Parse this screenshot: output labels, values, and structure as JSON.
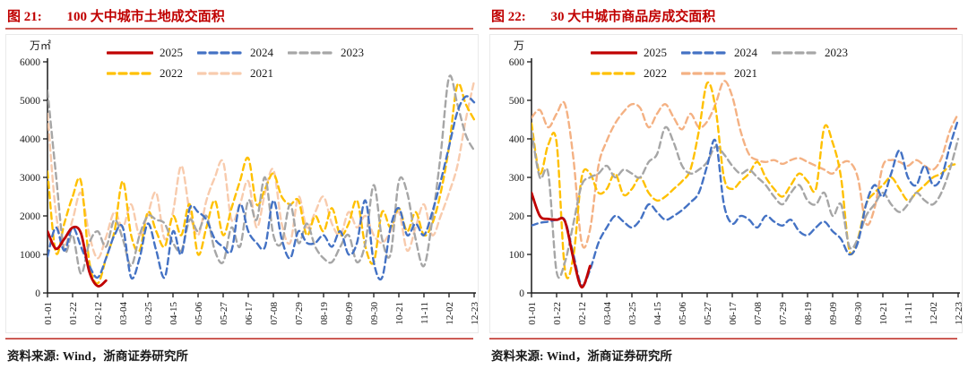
{
  "colors": {
    "title": "#c00000",
    "rule": "#cd5c55",
    "axis": "#1a1a1a",
    "frame": "#e9e9e9"
  },
  "chart_data": [
    {
      "type": "line",
      "figure_label": "图 21:",
      "title": "100 大中城市土地成交面积",
      "unit": "万㎡",
      "source": "资料来源: Wind，浙商证券研究所",
      "ylim": [
        0,
        6000
      ],
      "ystep": 1000,
      "y_tick_labels": [
        "0",
        "1000",
        "2000",
        "3000",
        "4000",
        "5000",
        "6000"
      ],
      "weeks": 52,
      "x_tick_every": 3,
      "x_tick_labels": [
        "01-01",
        "01-22",
        "02-12",
        "03-04",
        "03-25",
        "04-15",
        "05-06",
        "05-27",
        "06-17",
        "07-08",
        "07-29",
        "08-19",
        "09-09",
        "09-30",
        "10-21",
        "11-11",
        "12-02",
        "12-23"
      ],
      "grid": false,
      "legend_position": "top-inside",
      "legend_rows": [
        [
          "2025",
          "2024",
          "2023"
        ],
        [
          "2022",
          "2021"
        ]
      ],
      "series": [
        {
          "name": "2021",
          "color": "#F8CBAD",
          "dash": "dashed",
          "values": [
            4650,
            2100,
            1250,
            1900,
            2600,
            1500,
            900,
            1450,
            2100,
            1700,
            2300,
            1500,
            2050,
            2600,
            1400,
            2100,
            3300,
            2100,
            1500,
            2400,
            3000,
            3400,
            1900,
            2300,
            2900,
            1700,
            2600,
            3200,
            1800,
            1300,
            2500,
            1700,
            2100,
            2500,
            1800,
            1500,
            2100,
            1700,
            2000,
            1500,
            1300,
            1600,
            2100,
            1100,
            1700,
            2300,
            1500,
            2000,
            2600,
            3300,
            4500,
            5500
          ]
        },
        {
          "name": "2022",
          "color": "#FFC000",
          "dash": "dashed",
          "values": [
            3150,
            1050,
            1800,
            2500,
            2900,
            800,
            250,
            900,
            1600,
            2900,
            1500,
            1100,
            2100,
            1600,
            1200,
            2000,
            1500,
            2300,
            1000,
            1700,
            2400,
            1500,
            2200,
            2900,
            3500,
            2300,
            2700,
            3100,
            2500,
            2300,
            2400,
            1500,
            2000,
            1600,
            2200,
            1500,
            1800,
            2400,
            1200,
            800,
            2100,
            1700,
            2200,
            1600,
            2100,
            1500,
            1800,
            2600,
            3800,
            5400,
            4900,
            4500
          ]
        },
        {
          "name": "2023",
          "color": "#A6A6A6",
          "dash": "dashed",
          "values": [
            5250,
            3100,
            1100,
            1500,
            500,
            1300,
            1600,
            1200,
            1900,
            1400,
            700,
            1500,
            2000,
            1900,
            1800,
            1300,
            1100,
            1900,
            1600,
            2000,
            1100,
            800,
            1700,
            1200,
            2400,
            1900,
            3000,
            1500,
            1300,
            2300,
            1300,
            1800,
            1200,
            900,
            800,
            1200,
            1500,
            800,
            1300,
            2800,
            1400,
            1000,
            2900,
            2600,
            1400,
            700,
            1900,
            3600,
            5600,
            4900,
            4100,
            3700
          ]
        },
        {
          "name": "2024",
          "color": "#4472C4",
          "dash": "dashed",
          "values": [
            950,
            1700,
            1100,
            1700,
            1200,
            700,
            400,
            900,
            1500,
            1700,
            400,
            900,
            1800,
            1100,
            400,
            1600,
            1000,
            2200,
            2100,
            1900,
            1400,
            1200,
            1100,
            2300,
            1600,
            1300,
            1200,
            2400,
            1400,
            900,
            1600,
            1300,
            1300,
            1500,
            1200,
            1600,
            1000,
            1300,
            2400,
            800,
            400,
            1700,
            2200,
            1500,
            1800,
            1500,
            2100,
            2900,
            3800,
            4700,
            5100,
            4950
          ]
        },
        {
          "name": "2025",
          "color": "#C00000",
          "dash": "solid",
          "values": [
            1600,
            1150,
            1400,
            1700,
            1550,
            550,
            180,
            320
          ]
        }
      ]
    },
    {
      "type": "line",
      "figure_label": "图 22:",
      "title": "30 大中城市商品房成交面积",
      "unit": "万",
      "source": "资料来源: Wind，浙商证券研究所",
      "ylim": [
        0,
        600
      ],
      "ystep": 100,
      "y_tick_labels": [
        "0",
        "100",
        "200",
        "300",
        "400",
        "500",
        "600"
      ],
      "weeks": 52,
      "x_tick_every": 3,
      "x_tick_labels": [
        "01-01",
        "01-22",
        "02-12",
        "03-04",
        "03-25",
        "04-15",
        "05-06",
        "05-27",
        "06-17",
        "07-08",
        "07-29",
        "08-19",
        "09-09",
        "09-30",
        "10-21",
        "11-11",
        "12-02",
        "12-23"
      ],
      "grid": false,
      "legend_position": "top-inside",
      "legend_rows": [
        [
          "2025",
          "2024",
          "2023"
        ],
        [
          "2022",
          "2021"
        ]
      ],
      "series": [
        {
          "name": "2021",
          "color": "#F4B183",
          "dash": "dashed",
          "values": [
            455,
            475,
            430,
            465,
            490,
            350,
            130,
            165,
            330,
            395,
            440,
            470,
            490,
            480,
            430,
            465,
            490,
            455,
            425,
            465,
            430,
            445,
            490,
            550,
            510,
            420,
            360,
            345,
            340,
            345,
            335,
            345,
            350,
            340,
            330,
            320,
            310,
            335,
            340,
            300,
            180,
            220,
            330,
            345,
            340,
            330,
            345,
            330,
            320,
            350,
            420,
            465
          ]
        },
        {
          "name": "2022",
          "color": "#FFC000",
          "dash": "dashed",
          "values": [
            440,
            310,
            385,
            390,
            60,
            95,
            300,
            310,
            260,
            270,
            310,
            255,
            270,
            300,
            260,
            240,
            250,
            270,
            290,
            320,
            420,
            545,
            480,
            300,
            270,
            290,
            310,
            340,
            300,
            270,
            250,
            280,
            310,
            290,
            270,
            430,
            390,
            300,
            110,
            140,
            230,
            260,
            280,
            300,
            270,
            240,
            260,
            280,
            300,
            310,
            330,
            335
          ]
        },
        {
          "name": "2023",
          "color": "#A6A6A6",
          "dash": "dashed",
          "values": [
            420,
            300,
            310,
            55,
            80,
            180,
            280,
            300,
            310,
            330,
            300,
            320,
            310,
            300,
            340,
            360,
            430,
            390,
            330,
            310,
            320,
            340,
            380,
            360,
            330,
            310,
            320,
            300,
            280,
            250,
            230,
            260,
            280,
            240,
            230,
            260,
            200,
            230,
            120,
            140,
            200,
            230,
            260,
            230,
            210,
            230,
            260,
            240,
            230,
            260,
            320,
            400
          ]
        },
        {
          "name": "2024",
          "color": "#4472C4",
          "dash": "dashed",
          "values": [
            175,
            182,
            185,
            190,
            188,
            100,
            20,
            60,
            130,
            170,
            200,
            185,
            170,
            190,
            230,
            210,
            190,
            200,
            215,
            235,
            260,
            330,
            395,
            230,
            180,
            200,
            190,
            170,
            200,
            185,
            175,
            190,
            160,
            150,
            170,
            185,
            160,
            140,
            100,
            130,
            230,
            280,
            250,
            310,
            370,
            300,
            280,
            330,
            280,
            300,
            380,
            450
          ]
        },
        {
          "name": "2025",
          "color": "#C00000",
          "dash": "solid",
          "values": [
            260,
            200,
            192,
            190,
            186,
            90,
            15,
            70
          ]
        }
      ]
    }
  ]
}
